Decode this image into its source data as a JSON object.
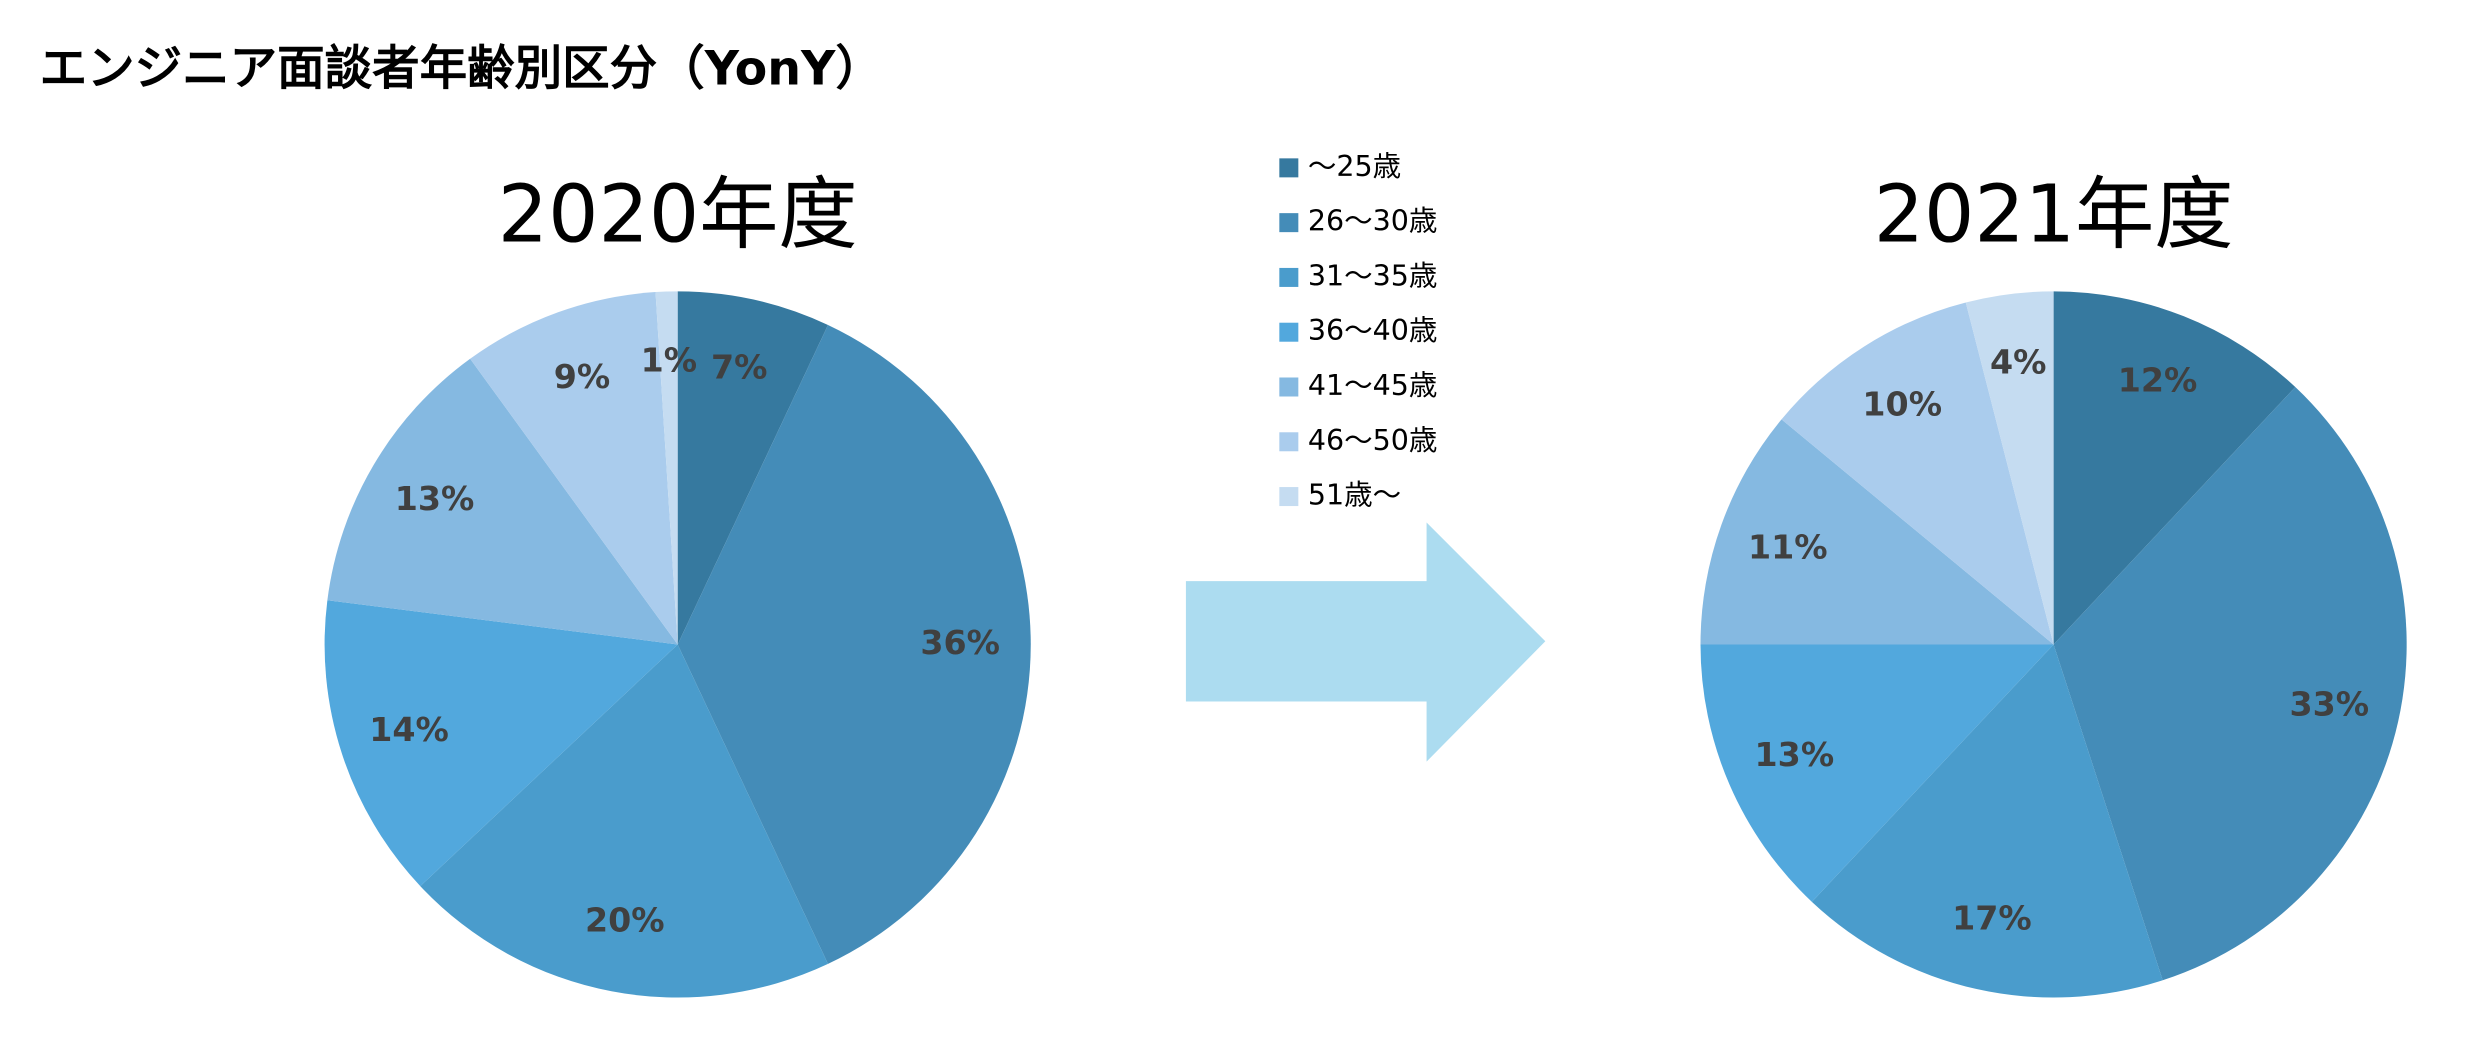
{
  "title": "エンジニア面談者年齢別区分（YonY）",
  "chart_data": [
    {
      "type": "pie",
      "title": "2020年度",
      "categories": [
        "～25歳",
        "26～30歳",
        "31～35歳",
        "36～40歳",
        "41～45歳",
        "46～50歳",
        "51歳～"
      ],
      "values": [
        7,
        36,
        20,
        14,
        13,
        9,
        1
      ],
      "value_labels": [
        "7%",
        "36%",
        "20%",
        "14%",
        "13%",
        "9%",
        "1%"
      ],
      "colors": [
        "#36799f",
        "#448cb8",
        "#4a9ccc",
        "#52a8dd",
        "#85b9e1",
        "#aacced",
        "#c5dcf1"
      ],
      "legend": "top"
    },
    {
      "type": "pie",
      "title": "2021年度",
      "categories": [
        "～25歳",
        "26～30歳",
        "31～35歳",
        "36～40歳",
        "41～45歳",
        "46～50歳",
        "51歳～"
      ],
      "values": [
        12,
        33,
        17,
        13,
        11,
        10,
        4
      ],
      "value_labels": [
        "12%",
        "33%",
        "17%",
        "13%",
        "11%",
        "10%",
        "4%"
      ],
      "colors": [
        "#36799f",
        "#448cb8",
        "#4a9ccc",
        "#52a8dd",
        "#85b9e1",
        "#aacced",
        "#c5dcf1"
      ]
    }
  ]
}
